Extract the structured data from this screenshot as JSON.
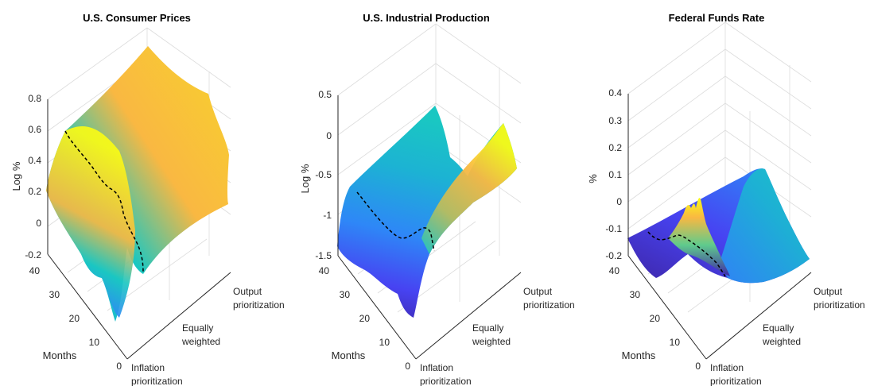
{
  "colors": {
    "colormap": [
      "#3e26a8",
      "#4743f2",
      "#2e87f7",
      "#1cb3d3",
      "#1ac7c2",
      "#5fcb8c",
      "#b9bd5e",
      "#f9b842",
      "#f8d22c",
      "#f9fb15"
    ],
    "path_line": "#000000",
    "grid": "#dcdcdc",
    "axis": "#262626"
  },
  "chart_data": [
    {
      "type": "surface",
      "title": "U.S. Consumer Prices",
      "zlabel": "Log %",
      "ylabel": "Months",
      "z_ticks": [
        "-0.2",
        "0",
        "0.2",
        "0.4",
        "0.6",
        "0.8"
      ],
      "zlim": [
        -0.2,
        0.8
      ],
      "months_ticks": [
        "0",
        "10",
        "20",
        "30",
        "40"
      ],
      "weight_ticks": [
        "Inflation prioritization",
        "Equally weighted",
        "Output prioritization"
      ],
      "surface_left_edge": [
        [
          0,
          -0.2
        ],
        [
          2,
          -0.15
        ],
        [
          4,
          -0.05
        ],
        [
          6,
          0.02
        ],
        [
          8,
          0.1
        ],
        [
          10,
          0.15
        ],
        [
          12,
          0.18
        ],
        [
          15,
          0.22
        ],
        [
          18,
          0.25
        ],
        [
          21,
          0.27
        ],
        [
          24,
          0.28
        ],
        [
          27,
          0.29
        ],
        [
          30,
          0.3
        ],
        [
          33,
          0.31
        ],
        [
          36,
          0.31
        ],
        [
          40,
          0.3
        ]
      ],
      "surface_right_edge": [
        [
          0,
          0.22
        ],
        [
          10,
          0.45
        ],
        [
          20,
          0.6
        ],
        [
          30,
          0.72
        ],
        [
          40,
          0.8
        ]
      ],
      "dashed_path": [
        [
          0,
          0.62
        ],
        [
          5,
          0.55
        ],
        [
          10,
          0.47
        ],
        [
          15,
          0.4
        ],
        [
          20,
          0.32
        ],
        [
          25,
          0.22
        ],
        [
          30,
          0.12
        ],
        [
          34,
          0.0
        ],
        [
          38,
          -0.1
        ],
        [
          40,
          -0.18
        ]
      ]
    },
    {
      "type": "surface",
      "title": "U.S. Industrial Production",
      "zlabel": "Log %",
      "ylabel": "Months",
      "z_ticks": [
        "-1.5",
        "-1",
        "-0.5",
        "0",
        "0.5"
      ],
      "zlim": [
        -1.5,
        0.5
      ],
      "months_ticks": [
        "0",
        "10",
        "20",
        "30",
        "40"
      ],
      "weight_ticks": [
        "Inflation prioritization",
        "Equally weighted",
        "Output prioritization"
      ],
      "surface_left_edge": [
        [
          0,
          -1.5
        ],
        [
          3,
          -1.45
        ],
        [
          6,
          -1.4
        ],
        [
          10,
          -1.35
        ],
        [
          15,
          -1.3
        ],
        [
          20,
          -1.2
        ],
        [
          25,
          -1.1
        ],
        [
          30,
          -1.0
        ],
        [
          35,
          -0.9
        ],
        [
          40,
          -0.8
        ]
      ],
      "surface_right_edge": [
        [
          0,
          -0.3
        ],
        [
          10,
          -0.2
        ],
        [
          20,
          -0.1
        ],
        [
          30,
          0.0
        ],
        [
          40,
          0.0
        ]
      ],
      "dashed_path": [
        [
          0,
          -0.7
        ],
        [
          5,
          -0.85
        ],
        [
          10,
          -1.0
        ],
        [
          15,
          -1.1
        ],
        [
          20,
          -1.15
        ],
        [
          25,
          -1.2
        ],
        [
          28,
          -1.15
        ],
        [
          31,
          -1.05
        ],
        [
          34,
          -1.1
        ],
        [
          37,
          -1.3
        ],
        [
          40,
          -1.4
        ]
      ]
    },
    {
      "type": "surface",
      "title": "Federal Funds Rate",
      "zlabel": "%",
      "ylabel": "Months",
      "z_ticks": [
        "-0.2",
        "-0.1",
        "0",
        "0.1",
        "0.2",
        "0.3",
        "0.4"
      ],
      "zlim": [
        -0.2,
        0.4
      ],
      "months_ticks": [
        "0",
        "10",
        "20",
        "30",
        "40"
      ],
      "weight_ticks": [
        "Inflation prioritization",
        "Equally weighted",
        "Output prioritization"
      ],
      "surface_left_edge": [
        [
          0,
          -0.15
        ],
        [
          5,
          -0.14
        ],
        [
          10,
          -0.13
        ],
        [
          15,
          -0.12
        ],
        [
          20,
          -0.11
        ],
        [
          25,
          -0.12
        ],
        [
          30,
          -0.14
        ],
        [
          35,
          -0.16
        ],
        [
          40,
          -0.18
        ]
      ],
      "surface_right_edge": [
        [
          0,
          -0.2
        ],
        [
          10,
          -0.18
        ],
        [
          20,
          -0.1
        ],
        [
          30,
          0.02
        ],
        [
          40,
          0.05
        ]
      ],
      "dashed_path": [
        [
          0,
          -0.12
        ],
        [
          5,
          -0.14
        ],
        [
          10,
          -0.15
        ],
        [
          15,
          -0.13
        ],
        [
          20,
          -0.1
        ],
        [
          25,
          -0.08
        ],
        [
          30,
          -0.12
        ],
        [
          35,
          -0.18
        ],
        [
          40,
          -0.22
        ]
      ]
    }
  ]
}
